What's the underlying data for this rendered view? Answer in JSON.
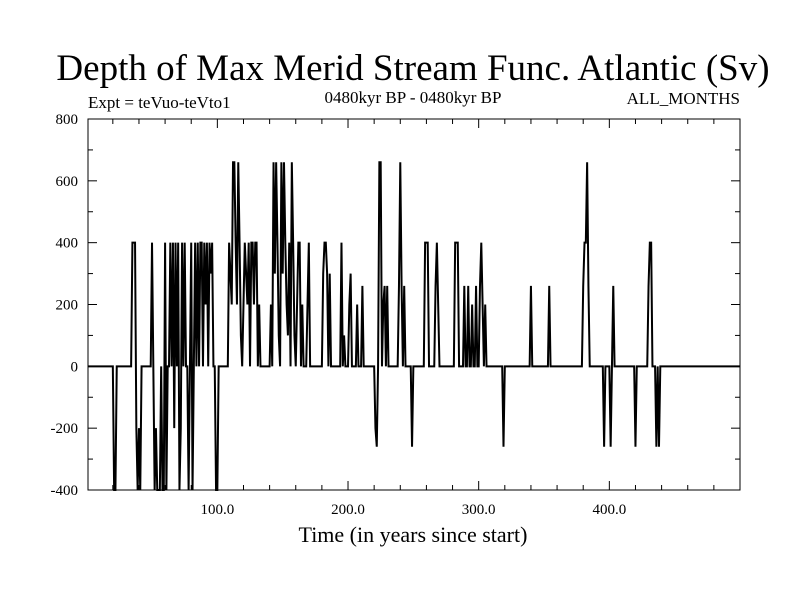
{
  "chart_data": {
    "type": "line",
    "title": "Depth of Max Merid Stream Func. Atlantic (Sv)",
    "subtitle_left": "Expt = teVuo-teVto1",
    "subtitle_center": "0480kyr BP - 0480kyr BP",
    "subtitle_right": "ALL_MONTHS",
    "xlabel": "Time (in years since start)",
    "ylabel": "",
    "xlim": [
      1,
      500
    ],
    "ylim": [
      -400,
      800
    ],
    "x_ticks": [
      100,
      200,
      300,
      400
    ],
    "x_tick_labels": [
      "100.0",
      "200.0",
      "300.0",
      "400.0"
    ],
    "y_ticks": [
      -400,
      -200,
      0,
      200,
      400,
      600,
      800
    ],
    "y_tick_labels": [
      "-400",
      "-200",
      "0",
      "200",
      "400",
      "600",
      "800"
    ],
    "grid": false,
    "series": [
      {
        "color": "#000000",
        "values": [
          0,
          0,
          0,
          0,
          0,
          0,
          0,
          0,
          0,
          0,
          0,
          0,
          0,
          0,
          0,
          0,
          0,
          0,
          0,
          0,
          -400,
          -400,
          0,
          0,
          0,
          0,
          0,
          0,
          0,
          0,
          0,
          0,
          0,
          0,
          400,
          400,
          400,
          -200,
          -400,
          -200,
          -400,
          0,
          0,
          0,
          0,
          0,
          0,
          0,
          0,
          400,
          0,
          -400,
          -200,
          -400,
          -400,
          -400,
          0,
          -400,
          -400,
          400,
          -400,
          0,
          0,
          400,
          0,
          400,
          -200,
          400,
          0,
          400,
          -400,
          -200,
          400,
          0,
          400,
          0,
          0,
          -400,
          0,
          400,
          -400,
          0,
          400,
          0,
          400,
          0,
          400,
          400,
          0,
          400,
          200,
          400,
          0,
          400,
          300,
          400,
          0,
          0,
          -400,
          -400,
          0,
          0,
          0,
          0,
          0,
          0,
          0,
          0,
          400,
          300,
          200,
          660,
          660,
          400,
          200,
          660,
          400,
          100,
          0,
          200,
          400,
          300,
          200,
          400,
          0,
          400,
          400,
          200,
          400,
          400,
          0,
          200,
          0,
          0,
          0,
          0,
          0,
          0,
          0,
          0,
          200,
          0,
          660,
          300,
          660,
          400,
          100,
          0,
          660,
          300,
          660,
          400,
          200,
          100,
          400,
          0,
          660,
          400,
          100,
          0,
          200,
          400,
          400,
          0,
          200,
          0,
          0,
          0,
          200,
          400,
          0,
          0,
          0,
          0,
          0,
          0,
          0,
          0,
          0,
          0,
          300,
          400,
          400,
          300,
          0,
          300,
          0,
          0,
          0,
          0,
          0,
          0,
          0,
          0,
          400,
          0,
          100,
          0,
          0,
          0,
          200,
          300,
          0,
          0,
          0,
          0,
          200,
          0,
          0,
          0,
          260,
          0,
          0,
          0,
          0,
          0,
          0,
          0,
          0,
          0,
          -200,
          -260,
          0,
          660,
          660,
          0,
          200,
          260,
          0,
          260,
          0,
          0,
          0,
          0,
          0,
          0,
          0,
          0,
          260,
          660,
          260,
          0,
          260,
          0,
          0,
          0,
          0,
          0,
          -260,
          0,
          0,
          0,
          0,
          0,
          0,
          0,
          0,
          0,
          400,
          400,
          400,
          0,
          0,
          0,
          0,
          0,
          260,
          400,
          200,
          0,
          0,
          0,
          0,
          0,
          0,
          0,
          0,
          0,
          0,
          0,
          0,
          400,
          400,
          400,
          0,
          0,
          0,
          0,
          260,
          0,
          0,
          260,
          0,
          0,
          200,
          0,
          0,
          260,
          0,
          0,
          260,
          400,
          200,
          0,
          200,
          0,
          0,
          0,
          0,
          0,
          0,
          0,
          0,
          0,
          0,
          0,
          0,
          0,
          -260,
          0,
          0,
          0,
          0,
          0,
          0,
          0,
          0,
          0,
          0,
          0,
          0,
          0,
          0,
          0,
          0,
          0,
          0,
          0,
          0,
          260,
          0,
          0,
          0,
          0,
          0,
          0,
          0,
          0,
          0,
          0,
          0,
          0,
          0,
          260,
          0,
          0,
          0,
          0,
          0,
          0,
          0,
          0,
          0,
          0,
          0,
          0,
          0,
          0,
          0,
          0,
          0,
          0,
          0,
          0,
          0,
          0,
          0,
          0,
          0,
          260,
          400,
          400,
          660,
          260,
          0,
          0,
          0,
          0,
          0,
          0,
          0,
          0,
          0,
          0,
          0,
          -260,
          0,
          0,
          0,
          0,
          -260,
          0,
          260,
          0,
          0,
          0,
          0,
          0,
          0,
          0,
          0,
          0,
          0,
          0,
          0,
          0,
          0,
          0,
          0,
          -260,
          0,
          0,
          0,
          0,
          0,
          0,
          0,
          0,
          0,
          260,
          400,
          400,
          0,
          0,
          0,
          -260,
          0,
          -260,
          0,
          0,
          0,
          0,
          0,
          0,
          0,
          0,
          0,
          0,
          0,
          0,
          0,
          0,
          0,
          0,
          0,
          0,
          0,
          0,
          0,
          0,
          0,
          0,
          0,
          0,
          0,
          0,
          0,
          0,
          0,
          0,
          0,
          0,
          0,
          0,
          0,
          0,
          0,
          0,
          0,
          0,
          0,
          0,
          0,
          0,
          0,
          0,
          0,
          0,
          0,
          0,
          0,
          0,
          0,
          0,
          0,
          0,
          0,
          0,
          0,
          0
        ]
      }
    ]
  }
}
